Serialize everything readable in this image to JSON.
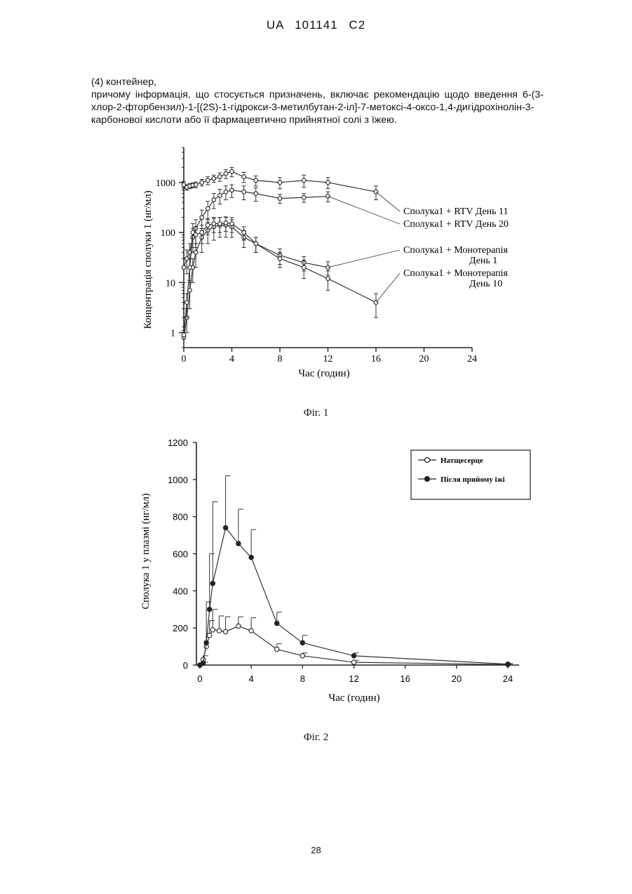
{
  "header": {
    "patent_id": "UA 101141 C2"
  },
  "text": {
    "item4": "(4) контейнер,",
    "paragraph": "причому інформація, що стосується призначень, включає рекомендацію щодо введення 6-(3-хлор-2-фторбензил)-1-[(2S)-1-гідрокси-3-метилбутан-2-іл]-7-метоксі-4-оксо-1,4-дигідрохінолін-3-карбонової кислоти або її фармацевтично прийнятної солі з їжею."
  },
  "figures": {
    "fig1_caption": "Фіг. 1",
    "fig2_caption": "Фіг. 2"
  },
  "page_number": "28",
  "chart_data": [
    {
      "type": "line",
      "xlabel": "Час (годин)",
      "ylabel": "Концентрація сполуки 1 (нг/мл)",
      "yscale": "log",
      "xlim": [
        0,
        24
      ],
      "ylim": [
        0.5,
        5000
      ],
      "x_ticks": [
        "0",
        "4",
        "8",
        "12",
        "16",
        "20",
        "24"
      ],
      "y_ticks": [
        "1",
        "10",
        "100",
        "1000"
      ],
      "series": [
        {
          "name": "Сполука1 + RTV День 11",
          "x": [
            0,
            0.25,
            0.5,
            0.75,
            1,
            1.5,
            2,
            2.5,
            3,
            3.5,
            4,
            5,
            6,
            8,
            10,
            12,
            16
          ],
          "y": [
            900,
            800,
            850,
            880,
            900,
            1000,
            1100,
            1200,
            1300,
            1500,
            1650,
            1300,
            1100,
            1000,
            1100,
            1000,
            650
          ],
          "err": [
            150,
            100,
            100,
            100,
            120,
            150,
            200,
            200,
            250,
            300,
            350,
            300,
            250,
            250,
            300,
            250,
            200
          ]
        },
        {
          "name": "Сполука1 + RTV День 20",
          "x": [
            0,
            0.25,
            0.5,
            0.75,
            1,
            1.5,
            2,
            2.5,
            3,
            3.5,
            4,
            5,
            6,
            8,
            10,
            12
          ],
          "y": [
            20,
            30,
            40,
            80,
            120,
            200,
            300,
            450,
            550,
            650,
            700,
            650,
            600,
            480,
            500,
            530
          ],
          "err": [
            10,
            15,
            20,
            40,
            60,
            80,
            120,
            150,
            180,
            200,
            200,
            200,
            180,
            100,
            100,
            120
          ]
        },
        {
          "name": "Сполука1 + Монотерапія День 1",
          "x": [
            0,
            0.25,
            0.5,
            0.75,
            1,
            1.5,
            2,
            2.5,
            3,
            3.5,
            4,
            5,
            6,
            8,
            10,
            12
          ],
          "y": [
            0.8,
            2,
            7,
            20,
            40,
            80,
            110,
            130,
            140,
            140,
            130,
            80,
            60,
            35,
            25,
            20
          ],
          "err": [
            0.3,
            1,
            4,
            10,
            20,
            40,
            50,
            60,
            60,
            60,
            50,
            30,
            20,
            12,
            8,
            6
          ]
        },
        {
          "name": "Сполука1 + Монотерапія День 10",
          "x": [
            0,
            0.25,
            0.5,
            0.75,
            1,
            1.5,
            2,
            2.5,
            3,
            3.5,
            4,
            5,
            6,
            8,
            10,
            12,
            16
          ],
          "y": [
            0.9,
            4,
            20,
            100,
            90,
            100,
            140,
            150,
            150,
            155,
            150,
            100,
            60,
            30,
            20,
            12,
            4
          ],
          "err": [
            0.4,
            2,
            10,
            50,
            40,
            40,
            50,
            50,
            50,
            50,
            50,
            30,
            20,
            10,
            8,
            5,
            2
          ]
        }
      ]
    },
    {
      "type": "line",
      "xlabel": "Час (годин)",
      "ylabel": "Сполука 1 у плазмі (нг/мл)",
      "xlim": [
        0,
        24
      ],
      "ylim": [
        0,
        1200
      ],
      "x_ticks": [
        "0",
        "4",
        "8",
        "12",
        "16",
        "20",
        "24"
      ],
      "y_ticks": [
        "0",
        "200",
        "400",
        "600",
        "800",
        "1000",
        "1200"
      ],
      "legend_position": "top-right",
      "series": [
        {
          "name": "Натщесерце",
          "marker": "open",
          "x": [
            0,
            0.25,
            0.5,
            0.75,
            1,
            1.5,
            2,
            3,
            4,
            6,
            8,
            12,
            24
          ],
          "y": [
            0,
            30,
            100,
            160,
            190,
            185,
            180,
            210,
            185,
            85,
            50,
            15,
            3
          ],
          "err": [
            0,
            20,
            60,
            80,
            110,
            80,
            80,
            50,
            70,
            30,
            15,
            10,
            2
          ]
        },
        {
          "name": "Після прийому їжі",
          "marker": "filled",
          "x": [
            0,
            0.25,
            0.5,
            0.75,
            1,
            2,
            3,
            4,
            6,
            8,
            12,
            24
          ],
          "y": [
            0,
            10,
            120,
            300,
            440,
            740,
            655,
            580,
            225,
            120,
            50,
            5
          ],
          "err": [
            0,
            5,
            220,
            300,
            440,
            280,
            185,
            150,
            60,
            40,
            15,
            3
          ]
        }
      ]
    }
  ]
}
